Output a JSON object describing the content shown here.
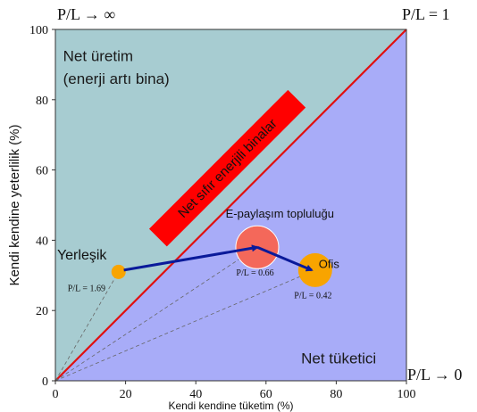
{
  "chart_data": {
    "type": "scatter",
    "title": "",
    "xlabel": "Kendi kendine tüketim (%)",
    "ylabel": "Kendi kendine yeterlilik (%)",
    "xlim": [
      0,
      100
    ],
    "ylim": [
      0,
      100
    ],
    "x_ticks": [
      "0",
      "20",
      "40",
      "60",
      "80",
      "100"
    ],
    "y_ticks": [
      "0",
      "20",
      "40",
      "60",
      "80",
      "100"
    ],
    "grid": false,
    "regions": {
      "upper": {
        "label_line1": "Net üretim",
        "label_line2": "(enerji artı bina)",
        "color": "#a7ccd1"
      },
      "lower": {
        "label": "Net tüketici",
        "color": "#a8acf8"
      }
    },
    "diagonal": {
      "label": "Net sıfır enerjili binalar",
      "line_color": "#e01010",
      "band_color": "#ff0000"
    },
    "corner_labels": {
      "top_left": "P/L → ∞",
      "top_right": "P/L = 1",
      "bottom_right": "P/L → 0"
    },
    "group_label": "E-paylaşım topluluğu",
    "points": [
      {
        "name": "Yerleşik",
        "x": 18,
        "y": 31,
        "size": "small",
        "color": "#f8a400",
        "pl_label": "P/L = 1.69"
      },
      {
        "name": "",
        "x": 57.5,
        "y": 38,
        "size": "large",
        "color": "#f4685a",
        "pl_label": "P/L = 0.66"
      },
      {
        "name": "Ofis",
        "x": 74,
        "y": 31.5,
        "size": "medium",
        "color": "#f8a400",
        "pl_label": "P/L = 0.42"
      }
    ],
    "arrows": [
      {
        "from": [
          19.5,
          31.5
        ],
        "to": [
          57.5,
          38
        ]
      },
      {
        "from": [
          57.5,
          38
        ],
        "to": [
          73,
          31.5
        ]
      }
    ]
  }
}
